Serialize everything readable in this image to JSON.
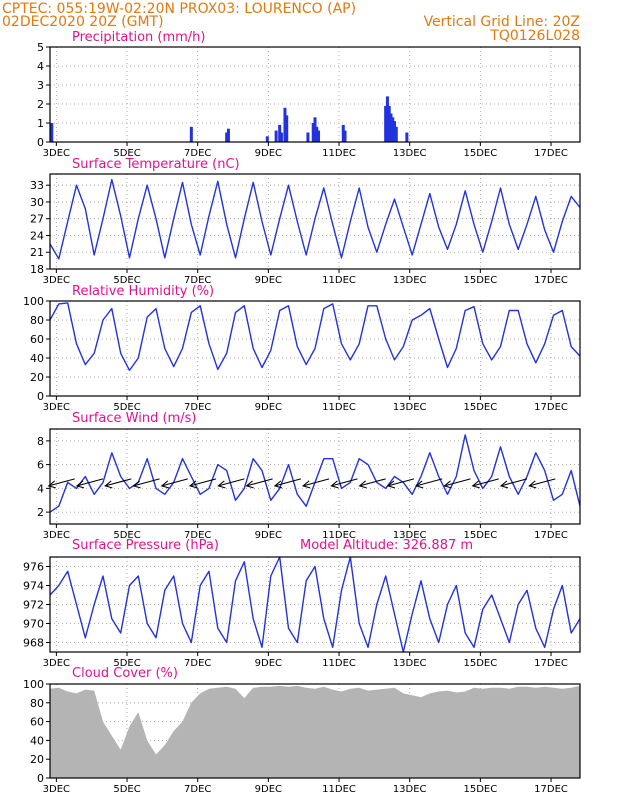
{
  "header": {
    "line1": "CPTEC:   055:19W-02:20N   PROX03: LOURENCO (AP)",
    "line2_left": "02DEC2020 20Z (GMT)",
    "line2_right": "Vertical Grid Line: 20Z",
    "line3_right": "TQ0126L028"
  },
  "colors": {
    "header": "#e07a10",
    "panel_title": "#e0148c",
    "series": "#2233dd",
    "cloud": "#b4b4b4",
    "arrow": "#000000"
  },
  "chart_data": [
    {
      "type": "bar",
      "title": "Precipitation (mm/h)",
      "ylim": [
        0,
        5
      ],
      "yticks": [
        0,
        1,
        2,
        3,
        4,
        5
      ],
      "xticks": [
        "3DEC",
        "5DEC",
        "7DEC",
        "9DEC",
        "11DEC",
        "13DEC",
        "15DEC",
        "17DEC"
      ],
      "x_unit": "days since 02DEC2020 20Z",
      "points": [
        [
          0.05,
          1.0
        ],
        [
          4.0,
          0.8
        ],
        [
          5.0,
          0.5
        ],
        [
          5.05,
          0.7
        ],
        [
          6.15,
          0.3
        ],
        [
          6.4,
          0.6
        ],
        [
          6.5,
          0.9
        ],
        [
          6.55,
          0.5
        ],
        [
          6.65,
          1.8
        ],
        [
          6.7,
          1.4
        ],
        [
          7.3,
          0.5
        ],
        [
          7.45,
          1.0
        ],
        [
          7.5,
          1.3
        ],
        [
          7.55,
          0.8
        ],
        [
          7.6,
          0.6
        ],
        [
          8.3,
          0.9
        ],
        [
          8.35,
          0.6
        ],
        [
          9.5,
          1.9
        ],
        [
          9.55,
          2.4
        ],
        [
          9.6,
          1.9
        ],
        [
          9.65,
          1.5
        ],
        [
          9.7,
          1.3
        ],
        [
          9.75,
          1.1
        ],
        [
          9.8,
          0.8
        ],
        [
          10.1,
          0.5
        ]
      ],
      "grid": true
    },
    {
      "type": "line",
      "title": "Surface Temperature (nC)",
      "ylim": [
        18,
        35
      ],
      "yticks": [
        18,
        21,
        24,
        27,
        30,
        33
      ],
      "xticks": [
        "3DEC",
        "5DEC",
        "7DEC",
        "9DEC",
        "11DEC",
        "13DEC",
        "15DEC",
        "17DEC"
      ],
      "x": [
        0,
        0.25,
        0.5,
        0.75,
        1,
        1.25,
        1.5,
        1.75,
        2,
        2.25,
        2.5,
        2.75,
        3,
        3.25,
        3.5,
        3.75,
        4,
        4.25,
        4.5,
        4.75,
        5,
        5.25,
        5.5,
        5.75,
        6,
        6.25,
        6.5,
        6.75,
        7,
        7.25,
        7.5,
        7.75,
        8,
        8.25,
        8.5,
        8.75,
        9,
        9.25,
        9.5,
        9.75,
        10,
        10.25,
        10.5,
        10.75,
        11,
        11.25,
        11.5,
        11.75,
        12,
        12.25,
        12.5,
        12.75,
        13,
        13.25,
        13.5,
        13.75,
        14,
        14.25,
        14.5,
        14.75,
        15
      ],
      "series": [
        {
          "values": [
            22.5,
            19.8,
            26.5,
            33.0,
            28.8,
            20.5,
            27.0,
            34.0,
            27.5,
            20.0,
            27.0,
            33.0,
            27.0,
            20.0,
            27.0,
            33.5,
            26.0,
            20.5,
            27.5,
            33.7,
            26.0,
            20.0,
            27.0,
            33.5,
            26.5,
            20.5,
            27.0,
            33.0,
            26.5,
            20.5,
            27.0,
            32.5,
            26.0,
            20.0,
            26.5,
            32.5,
            25.5,
            21.0,
            26.0,
            30.5,
            25.5,
            20.5,
            26.0,
            31.5,
            25.5,
            21.5,
            26.0,
            32.0,
            26.0,
            21.0,
            26.5,
            32.5,
            26.0,
            21.5,
            26.0,
            31.0,
            25.0,
            21.0,
            26.5,
            31.0,
            29.0
          ]
        }
      ],
      "grid": true
    },
    {
      "type": "line",
      "title": "Relative Humidity (%)",
      "ylim": [
        0,
        100
      ],
      "yticks": [
        0,
        20,
        40,
        60,
        80,
        100
      ],
      "xticks": [
        "3DEC",
        "5DEC",
        "7DEC",
        "9DEC",
        "11DEC",
        "13DEC",
        "15DEC",
        "17DEC"
      ],
      "x": [
        0,
        0.25,
        0.5,
        0.75,
        1,
        1.25,
        1.5,
        1.75,
        2,
        2.25,
        2.5,
        2.75,
        3,
        3.25,
        3.5,
        3.75,
        4,
        4.25,
        4.5,
        4.75,
        5,
        5.25,
        5.5,
        5.75,
        6,
        6.25,
        6.5,
        6.75,
        7,
        7.25,
        7.5,
        7.75,
        8,
        8.25,
        8.5,
        8.75,
        9,
        9.25,
        9.5,
        9.75,
        10,
        10.25,
        10.5,
        10.75,
        11,
        11.25,
        11.5,
        11.75,
        12,
        12.25,
        12.5,
        12.75,
        13,
        13.25,
        13.5,
        13.75,
        14,
        14.25,
        14.5,
        14.75,
        15
      ],
      "series": [
        {
          "values": [
            80,
            97,
            98,
            55,
            33,
            45,
            80,
            92,
            45,
            27,
            40,
            83,
            92,
            50,
            31,
            50,
            88,
            95,
            55,
            28,
            45,
            88,
            95,
            50,
            30,
            48,
            90,
            95,
            52,
            33,
            50,
            92,
            97,
            55,
            38,
            55,
            95,
            95,
            60,
            38,
            52,
            80,
            85,
            92,
            60,
            30,
            50,
            90,
            94,
            55,
            38,
            52,
            90,
            90,
            55,
            35,
            55,
            85,
            90,
            52,
            42
          ]
        }
      ],
      "grid": true
    },
    {
      "type": "line",
      "title": "Surface Wind (m/s)",
      "ylim": [
        1,
        9
      ],
      "yticks": [
        2,
        4,
        6,
        8
      ],
      "xticks": [
        "3DEC",
        "5DEC",
        "7DEC",
        "9DEC",
        "11DEC",
        "13DEC",
        "15DEC",
        "17DEC"
      ],
      "x": [
        0,
        0.25,
        0.5,
        0.75,
        1,
        1.25,
        1.5,
        1.75,
        2,
        2.25,
        2.5,
        2.75,
        3,
        3.25,
        3.5,
        3.75,
        4,
        4.25,
        4.5,
        4.75,
        5,
        5.25,
        5.5,
        5.75,
        6,
        6.25,
        6.5,
        6.75,
        7,
        7.25,
        7.5,
        7.75,
        8,
        8.25,
        8.5,
        8.75,
        9,
        9.25,
        9.5,
        9.75,
        10,
        10.25,
        10.5,
        10.75,
        11,
        11.25,
        11.5,
        11.75,
        12,
        12.25,
        12.5,
        12.75,
        13,
        13.25,
        13.5,
        13.75,
        14,
        14.25,
        14.5,
        14.75,
        15
      ],
      "series": [
        {
          "values": [
            2.0,
            2.5,
            4.5,
            4.0,
            5.0,
            3.5,
            4.5,
            7.0,
            5.0,
            4.0,
            4.5,
            6.5,
            4.0,
            3.5,
            4.5,
            6.5,
            5.0,
            3.5,
            4.0,
            6.0,
            5.5,
            3.0,
            4.0,
            6.5,
            5.5,
            3.0,
            4.0,
            6.0,
            3.5,
            2.5,
            4.5,
            6.5,
            6.5,
            4.0,
            4.5,
            6.5,
            6.0,
            4.5,
            4.0,
            5.0,
            4.5,
            3.5,
            5.0,
            7.0,
            5.0,
            3.5,
            5.0,
            8.5,
            5.5,
            4.0,
            5.0,
            7.5,
            5.0,
            3.5,
            5.0,
            7.0,
            5.5,
            3.0,
            3.5,
            5.5,
            2.5
          ]
        }
      ],
      "vectors_x": [
        0.7,
        1.5,
        2.3,
        3.1,
        3.9,
        4.7,
        5.5,
        6.3,
        7.1,
        7.9,
        8.7,
        9.5,
        10.3,
        11.1,
        11.9,
        12.7,
        13.5,
        14.3
      ],
      "grid": true
    },
    {
      "type": "line",
      "title": "Surface Pressure (hPa)",
      "annotation": "Model Altitude: 326.887  m",
      "ylim": [
        967,
        977
      ],
      "yticks": [
        968,
        970,
        972,
        974,
        976
      ],
      "xticks": [
        "3DEC",
        "5DEC",
        "7DEC",
        "9DEC",
        "11DEC",
        "13DEC",
        "15DEC",
        "17DEC"
      ],
      "x": [
        0,
        0.25,
        0.5,
        0.75,
        1,
        1.25,
        1.5,
        1.75,
        2,
        2.25,
        2.5,
        2.75,
        3,
        3.25,
        3.5,
        3.75,
        4,
        4.25,
        4.5,
        4.75,
        5,
        5.25,
        5.5,
        5.75,
        6,
        6.25,
        6.5,
        6.75,
        7,
        7.25,
        7.5,
        7.75,
        8,
        8.25,
        8.5,
        8.75,
        9,
        9.25,
        9.5,
        9.75,
        10,
        10.25,
        10.5,
        10.75,
        11,
        11.25,
        11.5,
        11.75,
        12,
        12.25,
        12.5,
        12.75,
        13,
        13.25,
        13.5,
        13.75,
        14,
        14.25,
        14.5,
        14.75,
        15
      ],
      "series": [
        {
          "values": [
            973.0,
            974.0,
            975.5,
            972.0,
            968.5,
            972.0,
            975.0,
            970.5,
            969.0,
            974.0,
            975.0,
            970.0,
            968.5,
            973.5,
            975.0,
            970.0,
            968.0,
            974.0,
            975.5,
            969.5,
            968.0,
            974.5,
            976.5,
            970.5,
            967.5,
            975.0,
            977.0,
            969.5,
            968.0,
            974.5,
            976.0,
            970.5,
            967.5,
            973.5,
            977.0,
            970.0,
            967.5,
            972.0,
            975.0,
            971.0,
            967.0,
            971.0,
            974.5,
            970.5,
            968.0,
            972.0,
            974.0,
            969.0,
            967.5,
            971.5,
            973.0,
            970.5,
            968.0,
            972.0,
            973.5,
            969.5,
            967.5,
            971.5,
            974.0,
            969.0,
            970.5
          ]
        }
      ],
      "grid": true
    },
    {
      "type": "area",
      "title": "Cloud Cover (%)",
      "ylim": [
        0,
        100
      ],
      "yticks": [
        0,
        20,
        40,
        60,
        80,
        100
      ],
      "xticks": [
        "3DEC",
        "5DEC",
        "7DEC",
        "9DEC",
        "11DEC",
        "13DEC",
        "15DEC",
        "17DEC"
      ],
      "x": [
        0,
        0.25,
        0.5,
        0.75,
        1,
        1.25,
        1.5,
        1.75,
        2,
        2.25,
        2.5,
        2.75,
        3,
        3.25,
        3.5,
        3.75,
        4,
        4.25,
        4.5,
        4.75,
        5,
        5.25,
        5.5,
        5.75,
        6,
        6.25,
        6.5,
        6.75,
        7,
        7.25,
        7.5,
        7.75,
        8,
        8.25,
        8.5,
        8.75,
        9,
        9.25,
        9.5,
        9.75,
        10,
        10.25,
        10.5,
        10.75,
        11,
        11.25,
        11.5,
        11.75,
        12,
        12.25,
        12.5,
        12.75,
        13,
        13.25,
        13.5,
        13.75,
        14,
        14.25,
        14.5,
        14.75,
        15
      ],
      "series": [
        {
          "values": [
            95,
            96,
            92,
            90,
            94,
            93,
            60,
            45,
            30,
            55,
            70,
            40,
            25,
            35,
            50,
            60,
            80,
            90,
            95,
            96,
            97,
            95,
            85,
            96,
            97,
            97,
            98,
            97,
            98,
            96,
            95,
            97,
            94,
            92,
            95,
            96,
            93,
            94,
            95,
            96,
            90,
            88,
            86,
            90,
            92,
            93,
            91,
            92,
            96,
            95,
            96,
            96,
            95,
            97,
            97,
            96,
            97,
            96,
            95,
            96,
            98
          ]
        }
      ],
      "grid": true
    }
  ]
}
